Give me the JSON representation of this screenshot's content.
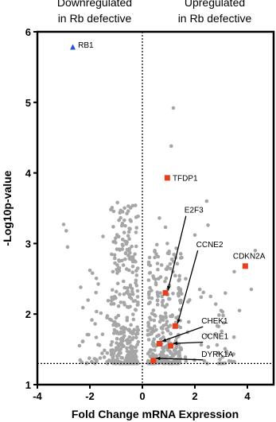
{
  "chart_data": {
    "type": "scatter",
    "title": "",
    "xlabel": "Fold Change mRNA Expression",
    "ylabel": "-Log10p-value",
    "xlim": [
      -4,
      5
    ],
    "ylim": [
      1,
      6
    ],
    "x_ticks": [
      -4,
      -2,
      0,
      2,
      4
    ],
    "y_ticks": [
      1,
      2,
      3,
      4,
      5,
      6
    ],
    "header_left": [
      "Downregulated",
      "in Rb defective"
    ],
    "header_right": [
      "Upregulated",
      "in Rb defective"
    ],
    "significance_threshold": 1.3,
    "zero_line_x": 0,
    "colors": {
      "background_points": "#a6a6a6",
      "highlight_up": "#e8401c",
      "highlight_down": "#2a53d6",
      "axes": "#000000"
    },
    "highlighted_genes": [
      {
        "name": "RB1",
        "x": -2.65,
        "y": 5.78,
        "direction": "down",
        "marker": "triangle"
      },
      {
        "name": "TFDP1",
        "x": 0.95,
        "y": 3.93,
        "direction": "up",
        "marker": "square"
      },
      {
        "name": "E2F3",
        "x": 0.88,
        "y": 2.3,
        "direction": "up",
        "marker": "square"
      },
      {
        "name": "CCNE2",
        "x": 1.25,
        "y": 1.83,
        "direction": "up",
        "marker": "square"
      },
      {
        "name": "CDKN2A",
        "x": 3.92,
        "y": 2.68,
        "direction": "up",
        "marker": "square"
      },
      {
        "name": "CHEK1",
        "x": 0.65,
        "y": 1.58,
        "direction": "up",
        "marker": "square"
      },
      {
        "name": "CCNE1",
        "x": 1.08,
        "y": 1.55,
        "direction": "up",
        "marker": "square"
      },
      {
        "name": "DYRK1A",
        "x": 0.42,
        "y": 1.34,
        "direction": "up",
        "marker": "square"
      }
    ],
    "label_anchors": [
      {
        "gene": "E2F3",
        "text_x": 1.6,
        "text_y": 3.47
      },
      {
        "gene": "CCNE2",
        "text_x": 2.05,
        "text_y": 2.98
      },
      {
        "gene": "CDKN2A",
        "text_x": 3.45,
        "text_y": 2.82
      },
      {
        "gene": "CHEK1",
        "text_x": 2.25,
        "text_y": 1.9
      },
      {
        "gene": "CCNE1",
        "text_x": 2.25,
        "text_y": 1.68
      },
      {
        "gene": "DYRK1A",
        "text_x": 2.25,
        "text_y": 1.43
      },
      {
        "gene": "TFDP1",
        "text_x": 1.15,
        "text_y": 3.92
      },
      {
        "gene": "RB1",
        "text_x": -2.45,
        "text_y": 5.81
      }
    ],
    "background_clusters": [
      {
        "x_min": -1.2,
        "x_max": -0.15,
        "y_min": 1.3,
        "y_max": 3.55,
        "count": 330
      },
      {
        "x_min": -2.4,
        "x_max": -1.2,
        "y_min": 1.3,
        "y_max": 2.6,
        "count": 40
      },
      {
        "x_min": 0.2,
        "x_max": 1.5,
        "y_min": 1.3,
        "y_max": 3.0,
        "count": 300
      },
      {
        "x_min": 1.5,
        "x_max": 3.5,
        "y_min": 1.3,
        "y_max": 2.6,
        "count": 40
      }
    ],
    "background_points": [
      [
        -3.0,
        3.27
      ],
      [
        -2.9,
        3.18
      ],
      [
        -2.85,
        2.95
      ],
      [
        -2.35,
        2.38
      ],
      [
        -2.0,
        2.62
      ],
      [
        -1.9,
        2.58
      ],
      [
        -1.5,
        3.1
      ],
      [
        -1.2,
        3.48
      ],
      [
        -0.95,
        3.58
      ],
      [
        -0.75,
        3.45
      ],
      [
        0.65,
        3.36
      ],
      [
        0.88,
        3.23
      ],
      [
        1.1,
        4.38
      ],
      [
        1.18,
        4.92
      ],
      [
        0.95,
        3.0
      ],
      [
        2.0,
        3.12
      ],
      [
        2.5,
        3.26
      ],
      [
        2.45,
        3.6
      ],
      [
        3.5,
        2.6
      ],
      [
        4.3,
        2.9
      ],
      [
        4.15,
        2.35
      ],
      [
        3.7,
        2.05
      ],
      [
        3.0,
        2.05
      ],
      [
        2.6,
        2.25
      ],
      [
        2.8,
        1.72
      ],
      [
        1.65,
        2.5
      ],
      [
        1.5,
        2.8
      ],
      [
        1.8,
        2.2
      ]
    ]
  }
}
